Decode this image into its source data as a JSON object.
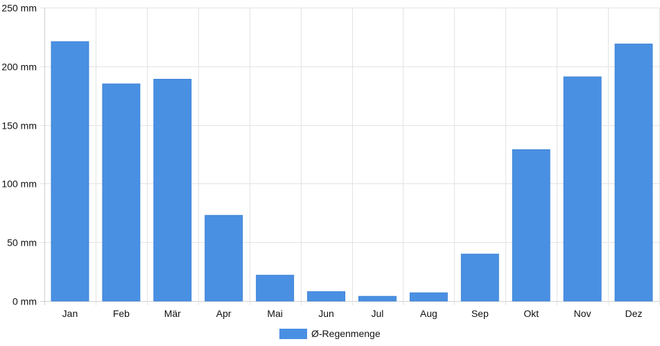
{
  "chart_data": {
    "type": "bar",
    "categories": [
      "Jan",
      "Feb",
      "Mär",
      "Apr",
      "Mai",
      "Jun",
      "Jul",
      "Aug",
      "Sep",
      "Okt",
      "Nov",
      "Dez"
    ],
    "series": [
      {
        "name": "Ø-Regenmenge",
        "values": [
          221,
          185,
          189,
          73,
          22,
          8,
          4,
          7,
          40,
          129,
          191,
          219
        ],
        "color": "#4a90e2"
      }
    ],
    "y_ticks": [
      "0 mm",
      "50 mm",
      "100 mm",
      "150 mm",
      "200 mm",
      "250 mm"
    ],
    "y_tick_values": [
      0,
      50,
      100,
      150,
      200,
      250
    ],
    "ylim": [
      0,
      250
    ],
    "grid": true,
    "legend_position": "bottom-center"
  }
}
